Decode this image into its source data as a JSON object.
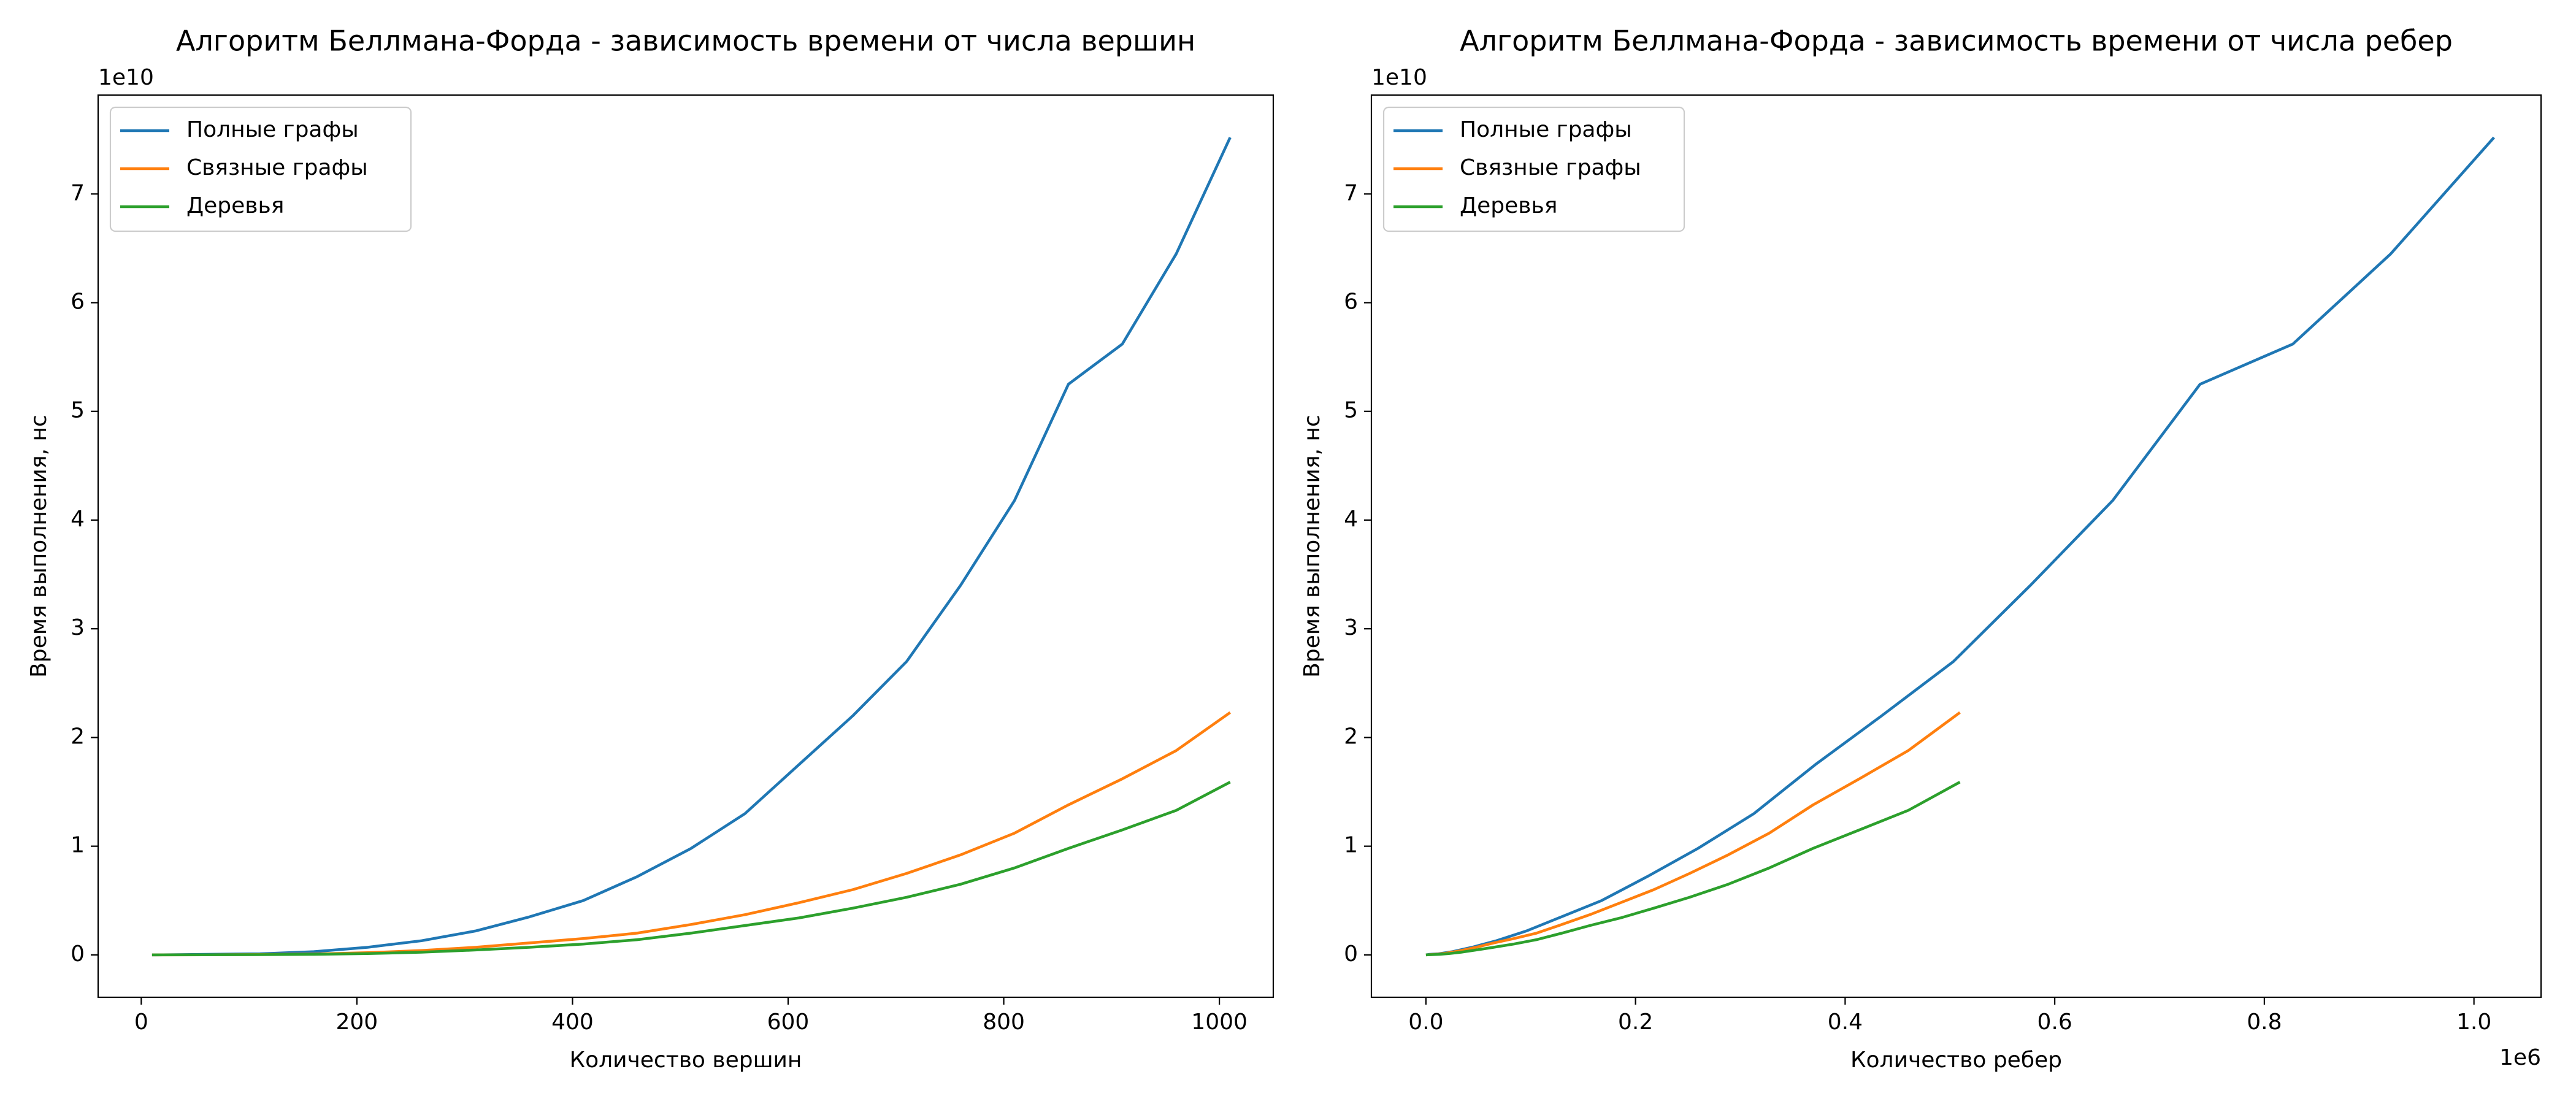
{
  "chart_data": [
    {
      "type": "line",
      "title": "Алгоритм Беллмана-Форда - зависимость времени от числа вершин",
      "xlabel": "Количество вершин",
      "ylabel": "Время выполнения, нс",
      "y_offset_text": "1e10",
      "x": [
        10,
        60,
        110,
        160,
        210,
        260,
        310,
        360,
        410,
        460,
        510,
        560,
        610,
        660,
        710,
        760,
        810,
        860,
        910,
        960,
        1010
      ],
      "series": [
        {
          "name": "Полные графы",
          "color": "#1f77b4",
          "values": [
            0,
            0.005,
            0.01,
            0.03,
            0.07,
            0.13,
            0.22,
            0.35,
            0.5,
            0.72,
            0.98,
            1.3,
            1.75,
            2.2,
            2.7,
            3.4,
            4.18,
            5.25,
            5.62,
            6.45,
            7.52
          ]
        },
        {
          "name": "Связные графы",
          "color": "#ff7f0e",
          "values": [
            0,
            0.001,
            0.003,
            0.008,
            0.02,
            0.04,
            0.07,
            0.11,
            0.15,
            0.2,
            0.28,
            0.37,
            0.48,
            0.6,
            0.75,
            0.92,
            1.12,
            1.38,
            1.62,
            1.88,
            2.23
          ]
        },
        {
          "name": "Деревья",
          "color": "#2ca02c",
          "values": [
            0,
            0.001,
            0.002,
            0.005,
            0.012,
            0.025,
            0.045,
            0.07,
            0.1,
            0.14,
            0.2,
            0.27,
            0.34,
            0.43,
            0.53,
            0.65,
            0.8,
            0.98,
            1.15,
            1.33,
            1.59
          ]
        }
      ],
      "xlim": [
        -40,
        1050
      ],
      "xticks": [
        0,
        200,
        400,
        600,
        800,
        1000
      ],
      "ylim": [
        -0.39,
        7.91
      ],
      "yticks": [
        0,
        1,
        2,
        3,
        4,
        5,
        6,
        7
      ],
      "legend": "upper left"
    },
    {
      "type": "line",
      "title": "Алгоритм Беллмана-Форда - зависимость времени от числа ребер",
      "xlabel": "Количество ребер",
      "ylabel": "Время выполнения, нс",
      "x_offset_text": "1e6",
      "y_offset_text": "1e10",
      "series": [
        {
          "name": "Полные графы",
          "color": "#1f77b4",
          "x": [
            0.0001,
            0.0035,
            0.012,
            0.0254,
            0.0439,
            0.0673,
            0.0958,
            0.1292,
            0.1677,
            0.2111,
            0.2596,
            0.313,
            0.3715,
            0.4349,
            0.5034,
            0.5768,
            0.6553,
            0.7387,
            0.8272,
            0.9206,
            1.0191
          ],
          "values": [
            0,
            0.005,
            0.01,
            0.03,
            0.07,
            0.13,
            0.22,
            0.35,
            0.5,
            0.72,
            0.98,
            1.3,
            1.75,
            2.2,
            2.7,
            3.4,
            4.18,
            5.25,
            5.62,
            6.45,
            7.52
          ]
        },
        {
          "name": "Связные графы",
          "color": "#ff7f0e",
          "x": [
            0,
            0.0018,
            0.006,
            0.0127,
            0.0219,
            0.0337,
            0.0479,
            0.0646,
            0.0838,
            0.1056,
            0.1298,
            0.1565,
            0.1857,
            0.2175,
            0.2517,
            0.2884,
            0.3276,
            0.3694,
            0.4136,
            0.4603,
            0.5095
          ],
          "values": [
            0,
            0.001,
            0.003,
            0.008,
            0.02,
            0.04,
            0.07,
            0.11,
            0.15,
            0.2,
            0.28,
            0.37,
            0.48,
            0.6,
            0.75,
            0.92,
            1.12,
            1.38,
            1.62,
            1.88,
            2.23
          ]
        },
        {
          "name": "Деревья",
          "color": "#2ca02c",
          "x": [
            0,
            0.0018,
            0.006,
            0.0127,
            0.0219,
            0.0337,
            0.0479,
            0.0646,
            0.0838,
            0.1056,
            0.1298,
            0.1565,
            0.1857,
            0.2175,
            0.2517,
            0.2884,
            0.3276,
            0.3694,
            0.4136,
            0.4603,
            0.5095
          ],
          "values": [
            0,
            0.001,
            0.002,
            0.005,
            0.012,
            0.025,
            0.045,
            0.07,
            0.1,
            0.14,
            0.2,
            0.27,
            0.34,
            0.43,
            0.53,
            0.65,
            0.8,
            0.98,
            1.15,
            1.33,
            1.59
          ]
        }
      ],
      "xlim": [
        -0.052,
        1.064
      ],
      "xticks": [
        {
          "value": 0,
          "label": "0.0"
        },
        {
          "value": 0.2,
          "label": "0.2"
        },
        {
          "value": 0.4,
          "label": "0.4"
        },
        {
          "value": 0.6,
          "label": "0.6"
        },
        {
          "value": 0.8,
          "label": "0.8"
        },
        {
          "value": 1,
          "label": "1.0"
        }
      ],
      "ylim": [
        -0.39,
        7.91
      ],
      "yticks": [
        0,
        1,
        2,
        3,
        4,
        5,
        6,
        7
      ],
      "legend": "upper left"
    }
  ]
}
